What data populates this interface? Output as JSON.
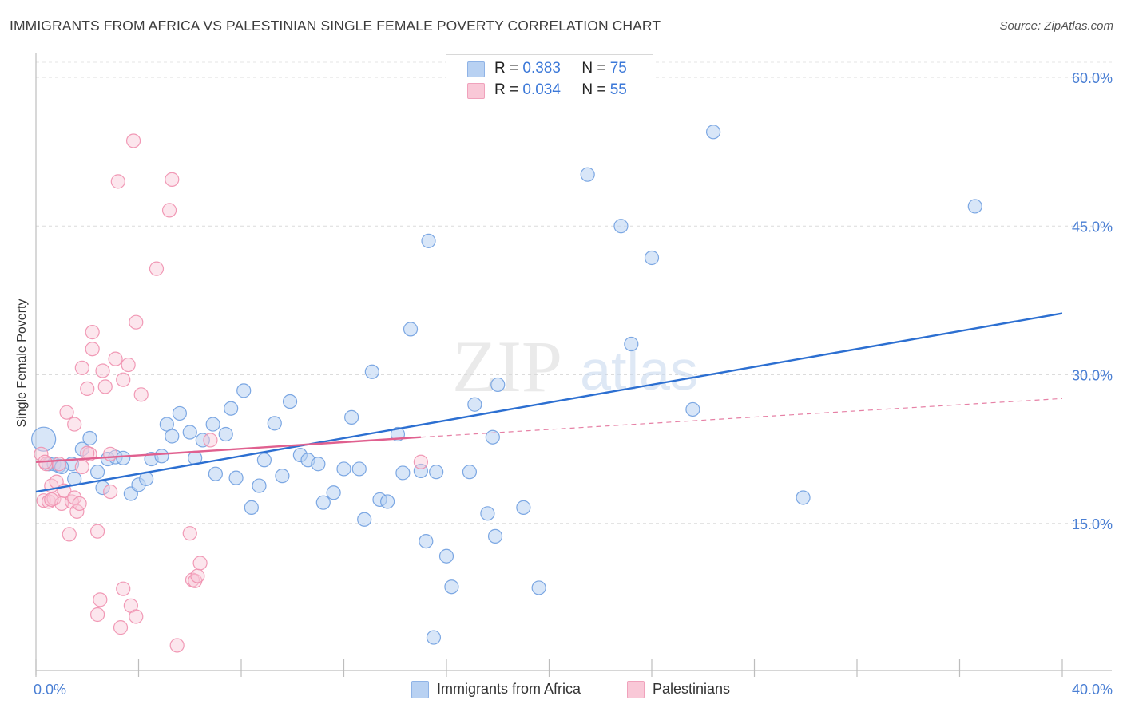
{
  "title": "IMMIGRANTS FROM AFRICA VS PALESTINIAN SINGLE FEMALE POVERTY CORRELATION CHART",
  "source": "Source: ZipAtlas.com",
  "watermark": {
    "zip": "ZIP",
    "atlas": "atlas"
  },
  "legend": {
    "r_label": "R =",
    "n_label": "N =",
    "rows": [
      {
        "r": "0.383",
        "n": "75",
        "color": "#a9c7ee"
      },
      {
        "r": "0.034",
        "n": "55",
        "color": "#f6b8cb"
      }
    ]
  },
  "bottom_legend": [
    {
      "label": "Immigrants from Africa",
      "color": "#a9c7ee"
    },
    {
      "label": "Palestinians",
      "color": "#f6b8cb"
    }
  ],
  "chart_data": {
    "type": "scatter",
    "title": "IMMIGRANTS FROM AFRICA VS PALESTINIAN SINGLE FEMALE POVERTY CORRELATION CHART",
    "xlabel": "",
    "ylabel": "Single Female Poverty",
    "xlim": [
      0,
      40
    ],
    "ylim": [
      0,
      60
    ],
    "x_tick_labels": [
      "0.0%",
      "40.0%"
    ],
    "y_ticks": [
      15,
      30,
      45,
      60
    ],
    "y_tick_labels": [
      "15.0%",
      "30.0%",
      "45.0%",
      "60.0%"
    ],
    "grid": true,
    "series": [
      {
        "name": "Immigrants from Africa",
        "color": "#6f9fe0",
        "fill": "#b8d1f2",
        "line_color": "#2c6fd1",
        "trend": {
          "x": [
            0,
            40
          ],
          "y": [
            18.2,
            36.2
          ],
          "style": "solid"
        },
        "points": [
          [
            0.3,
            23.5
          ],
          [
            0.5,
            21.0
          ],
          [
            0.7,
            21.0
          ],
          [
            0.9,
            20.8
          ],
          [
            1.4,
            21.0
          ],
          [
            1.5,
            19.5
          ],
          [
            1.8,
            22.5
          ],
          [
            2.1,
            23.6
          ],
          [
            2.4,
            20.2
          ],
          [
            2.6,
            18.6
          ],
          [
            2.8,
            21.5
          ],
          [
            3.1,
            21.7
          ],
          [
            3.4,
            21.6
          ],
          [
            3.7,
            18.0
          ],
          [
            4.0,
            18.9
          ],
          [
            4.3,
            19.5
          ],
          [
            4.5,
            21.5
          ],
          [
            4.9,
            21.8
          ],
          [
            5.1,
            25.0
          ],
          [
            5.3,
            23.8
          ],
          [
            5.6,
            26.1
          ],
          [
            6.0,
            24.2
          ],
          [
            6.2,
            21.6
          ],
          [
            6.5,
            23.4
          ],
          [
            6.9,
            25.0
          ],
          [
            7.0,
            20.0
          ],
          [
            7.4,
            24.0
          ],
          [
            7.6,
            26.6
          ],
          [
            7.8,
            19.6
          ],
          [
            8.1,
            28.4
          ],
          [
            8.4,
            16.6
          ],
          [
            8.7,
            18.8
          ],
          [
            8.9,
            21.4
          ],
          [
            9.3,
            25.1
          ],
          [
            9.6,
            19.8
          ],
          [
            9.9,
            27.3
          ],
          [
            10.3,
            21.9
          ],
          [
            10.6,
            21.4
          ],
          [
            11.0,
            21.0
          ],
          [
            11.2,
            17.1
          ],
          [
            11.6,
            18.1
          ],
          [
            12.0,
            20.5
          ],
          [
            12.3,
            25.7
          ],
          [
            12.6,
            20.5
          ],
          [
            12.8,
            15.4
          ],
          [
            13.1,
            30.3
          ],
          [
            13.4,
            17.4
          ],
          [
            13.7,
            17.2
          ],
          [
            14.1,
            24.0
          ],
          [
            14.3,
            20.1
          ],
          [
            14.6,
            34.6
          ],
          [
            15.0,
            20.3
          ],
          [
            15.2,
            13.2
          ],
          [
            15.5,
            3.5
          ],
          [
            15.6,
            20.2
          ],
          [
            15.3,
            43.5
          ],
          [
            16.0,
            11.7
          ],
          [
            16.2,
            8.6
          ],
          [
            16.9,
            20.2
          ],
          [
            17.1,
            27.0
          ],
          [
            17.6,
            16.0
          ],
          [
            17.8,
            23.7
          ],
          [
            17.9,
            13.7
          ],
          [
            18.0,
            29.0
          ],
          [
            19.0,
            16.6
          ],
          [
            19.6,
            8.5
          ],
          [
            21.5,
            50.2
          ],
          [
            22.8,
            45.0
          ],
          [
            23.2,
            33.1
          ],
          [
            24.0,
            41.8
          ],
          [
            25.6,
            26.5
          ],
          [
            26.4,
            54.5
          ],
          [
            29.9,
            17.6
          ],
          [
            36.6,
            47.0
          ],
          [
            1.0,
            20.7
          ]
        ]
      },
      {
        "name": "Palestinians",
        "color": "#ef8fae",
        "fill": "#f9c8d7",
        "line_color": "#e0608f",
        "trend": {
          "x": [
            0,
            15.0
          ],
          "y": [
            21.2,
            23.7
          ],
          "style": "solid"
        },
        "trend_extension": {
          "x": [
            15.0,
            40
          ],
          "y": [
            23.7,
            27.6
          ],
          "style": "dashed"
        },
        "points": [
          [
            0.2,
            22.0
          ],
          [
            0.3,
            17.3
          ],
          [
            0.4,
            21.0
          ],
          [
            0.5,
            17.2
          ],
          [
            0.6,
            18.8
          ],
          [
            0.7,
            17.5
          ],
          [
            0.8,
            19.2
          ],
          [
            0.9,
            21.0
          ],
          [
            1.0,
            17.0
          ],
          [
            1.1,
            18.3
          ],
          [
            1.2,
            26.2
          ],
          [
            1.3,
            13.9
          ],
          [
            1.4,
            17.2
          ],
          [
            1.5,
            17.6
          ],
          [
            1.5,
            25.0
          ],
          [
            1.6,
            16.2
          ],
          [
            1.7,
            17.0
          ],
          [
            1.8,
            20.7
          ],
          [
            1.8,
            30.7
          ],
          [
            2.0,
            28.6
          ],
          [
            2.1,
            22.0
          ],
          [
            2.2,
            34.3
          ],
          [
            2.2,
            32.6
          ],
          [
            2.4,
            14.2
          ],
          [
            2.4,
            5.8
          ],
          [
            2.5,
            7.3
          ],
          [
            2.6,
            30.4
          ],
          [
            2.7,
            28.8
          ],
          [
            2.9,
            22.0
          ],
          [
            2.9,
            18.2
          ],
          [
            3.1,
            31.6
          ],
          [
            3.2,
            49.5
          ],
          [
            3.3,
            4.5
          ],
          [
            3.4,
            29.5
          ],
          [
            3.4,
            8.4
          ],
          [
            3.6,
            31.0
          ],
          [
            3.7,
            6.7
          ],
          [
            3.8,
            53.6
          ],
          [
            3.9,
            5.6
          ],
          [
            3.9,
            35.3
          ],
          [
            4.1,
            28.0
          ],
          [
            4.7,
            40.7
          ],
          [
            5.2,
            46.6
          ],
          [
            5.3,
            49.7
          ],
          [
            5.5,
            2.7
          ],
          [
            6.0,
            14.0
          ],
          [
            6.1,
            9.3
          ],
          [
            6.2,
            9.2
          ],
          [
            6.3,
            9.7
          ],
          [
            6.4,
            11.0
          ],
          [
            6.8,
            23.4
          ],
          [
            15.0,
            21.2
          ],
          [
            0.35,
            21.2
          ],
          [
            0.6,
            17.4
          ],
          [
            2.0,
            22.1
          ]
        ]
      }
    ]
  }
}
